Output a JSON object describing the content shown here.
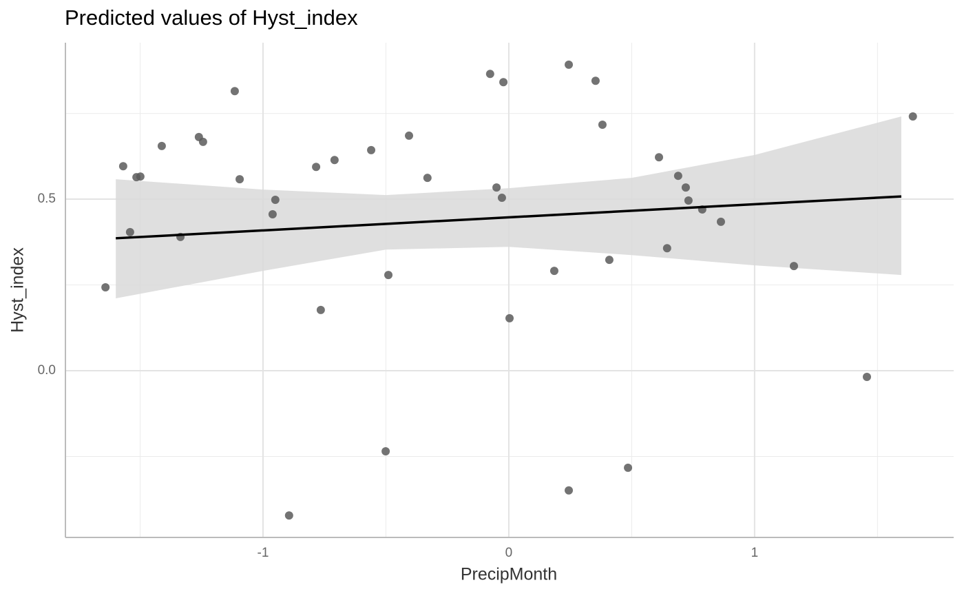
{
  "chart_data": {
    "type": "scatter",
    "title": "Predicted values of Hyst_index",
    "x_label": "PrecipMonth",
    "y_label": "Hyst_index",
    "xlim": [
      -1.804,
      1.81
    ],
    "ylim": [
      -0.486,
      0.956
    ],
    "xticks": [
      -1,
      0,
      1
    ],
    "yticks": [
      {
        "value": 0,
        "label": "0.0"
      },
      0.5
    ],
    "x_minor_grid": [
      -1.5,
      -0.5,
      0.5,
      1.5
    ],
    "y_minor_grid": [
      -0.25,
      0.25,
      0.75
    ],
    "grid": true,
    "color": "#5a5a5a",
    "x": [
      -1.641,
      -1.569,
      -1.541,
      -1.515,
      -1.499,
      -1.412,
      -1.336,
      -1.261,
      -1.244,
      -1.115,
      -1.095,
      -0.961,
      -0.95,
      -0.894,
      -0.784,
      -0.765,
      -0.709,
      -0.56,
      -0.501,
      -0.49,
      -0.406,
      -0.331,
      -0.076,
      -0.05,
      -0.028,
      -0.022,
      0.003,
      0.185,
      0.244,
      0.244,
      0.353,
      0.381,
      0.409,
      0.485,
      0.611,
      0.644,
      0.689,
      0.72,
      0.731,
      0.787,
      0.863,
      1.16,
      1.457,
      1.644
    ],
    "y": [
      0.243,
      0.596,
      0.404,
      0.564,
      0.566,
      0.655,
      0.39,
      0.681,
      0.667,
      0.815,
      0.558,
      0.456,
      0.498,
      -0.422,
      0.594,
      0.177,
      0.614,
      0.643,
      -0.235,
      0.279,
      0.685,
      0.562,
      0.865,
      0.534,
      0.504,
      0.841,
      0.153,
      0.291,
      0.892,
      -0.349,
      0.845,
      0.717,
      0.323,
      -0.283,
      0.622,
      0.357,
      0.568,
      0.534,
      0.496,
      0.47,
      0.434,
      0.305,
      -0.018,
      0.741
    ],
    "fit": {
      "x": [
        -1.599,
        1.597
      ],
      "y": [
        0.386,
        0.508
      ],
      "color": "#000000"
    },
    "ci": {
      "x": [
        -1.599,
        -1,
        -0.5,
        0,
        0.5,
        1,
        1.597
      ],
      "upper": [
        0.558,
        0.528,
        0.512,
        0.532,
        0.562,
        0.629,
        0.741
      ],
      "lower": [
        0.211,
        0.291,
        0.353,
        0.361,
        0.337,
        0.307,
        0.279
      ],
      "color": "#d9d9d9"
    }
  }
}
